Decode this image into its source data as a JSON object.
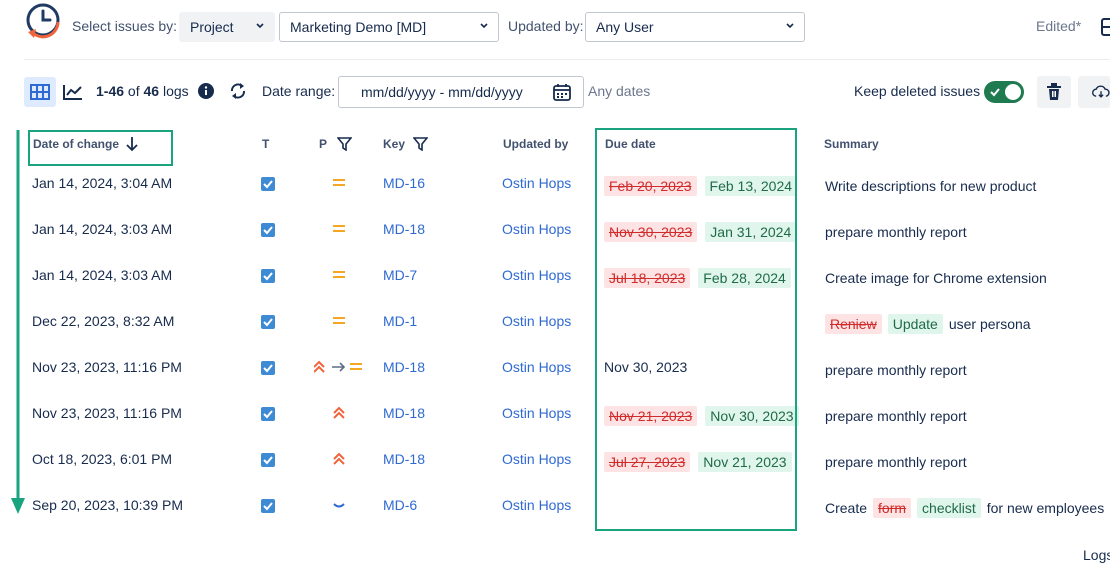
{
  "header": {
    "select_issues_label": "Select issues by:",
    "select_by_value": "Project",
    "project_value": "Marketing Demo [MD]",
    "updated_by_label": "Updated by:",
    "updated_by_value": "Any User",
    "edited_label": "Edited*"
  },
  "toolbar": {
    "count_range": "1-46",
    "count_of": "of",
    "count_total": "46",
    "count_suffix": "logs",
    "date_range_label": "Date range:",
    "date_placeholder": "mm/dd/yyyy - mm/dd/yyyy",
    "any_dates": "Any dates",
    "keep_deleted_label": "Keep deleted issues",
    "keep_deleted_on": true
  },
  "columns": {
    "date": "Date of change",
    "type": "T",
    "priority": "P",
    "key": "Key",
    "updated_by": "Updated by",
    "due_date": "Due date",
    "summary": "Summary"
  },
  "rows": [
    {
      "date": "Jan 14, 2024, 3:04 AM",
      "priority": "medium",
      "key": "MD-16",
      "user": "Ostin Hops",
      "due_old": "Feb 20, 2023",
      "due_new": "Feb 13, 2024",
      "summary_pre": "Write descriptions for new product"
    },
    {
      "date": "Jan 14, 2024, 3:03 AM",
      "priority": "medium",
      "key": "MD-18",
      "user": "Ostin Hops",
      "due_old": "Nov 30, 2023",
      "due_new": "Jan 31, 2024",
      "summary_pre": "prepare monthly report"
    },
    {
      "date": "Jan 14, 2024, 3:03 AM",
      "priority": "medium",
      "key": "MD-7",
      "user": "Ostin Hops",
      "due_old": "Jul 18, 2023",
      "due_new": "Feb 28, 2024",
      "summary_pre": "Create image for Chrome extension"
    },
    {
      "date": "Dec 22, 2023, 8:32 AM",
      "priority": "medium",
      "key": "MD-1",
      "user": "Ostin Hops",
      "summary_del": "Reniew",
      "summary_ins": "Update",
      "summary_post": "user persona"
    },
    {
      "date": "Nov 23, 2023, 11:16 PM",
      "priority": "high-to-medium",
      "key": "MD-18",
      "user": "Ostin Hops",
      "due_plain": "Nov 30, 2023",
      "summary_pre": "prepare monthly report"
    },
    {
      "date": "Nov 23, 2023, 11:16 PM",
      "priority": "high",
      "key": "MD-18",
      "user": "Ostin Hops",
      "due_old": "Nov 21, 2023",
      "due_new": "Nov 30, 2023",
      "summary_pre": "prepare monthly report"
    },
    {
      "date": "Oct 18, 2023, 6:01 PM",
      "priority": "high",
      "key": "MD-18",
      "user": "Ostin Hops",
      "due_old": "Jul 27, 2023",
      "due_new": "Nov 21, 2023",
      "summary_pre": "prepare monthly report"
    },
    {
      "date": "Sep 20, 2023, 10:39 PM",
      "priority": "low",
      "key": "MD-6",
      "user": "Ostin Hops",
      "summary_pre": "Create",
      "summary_del": "form",
      "summary_ins": "checklist",
      "summary_post": "for new employees"
    }
  ],
  "footer": {
    "logs_label": "Logs"
  },
  "colors": {
    "accent": "#1aa37f",
    "link": "#2f6ad2",
    "medium_priority": "#f5a623",
    "high_priority": "#f0643c",
    "low_priority": "#2f6ad2"
  }
}
